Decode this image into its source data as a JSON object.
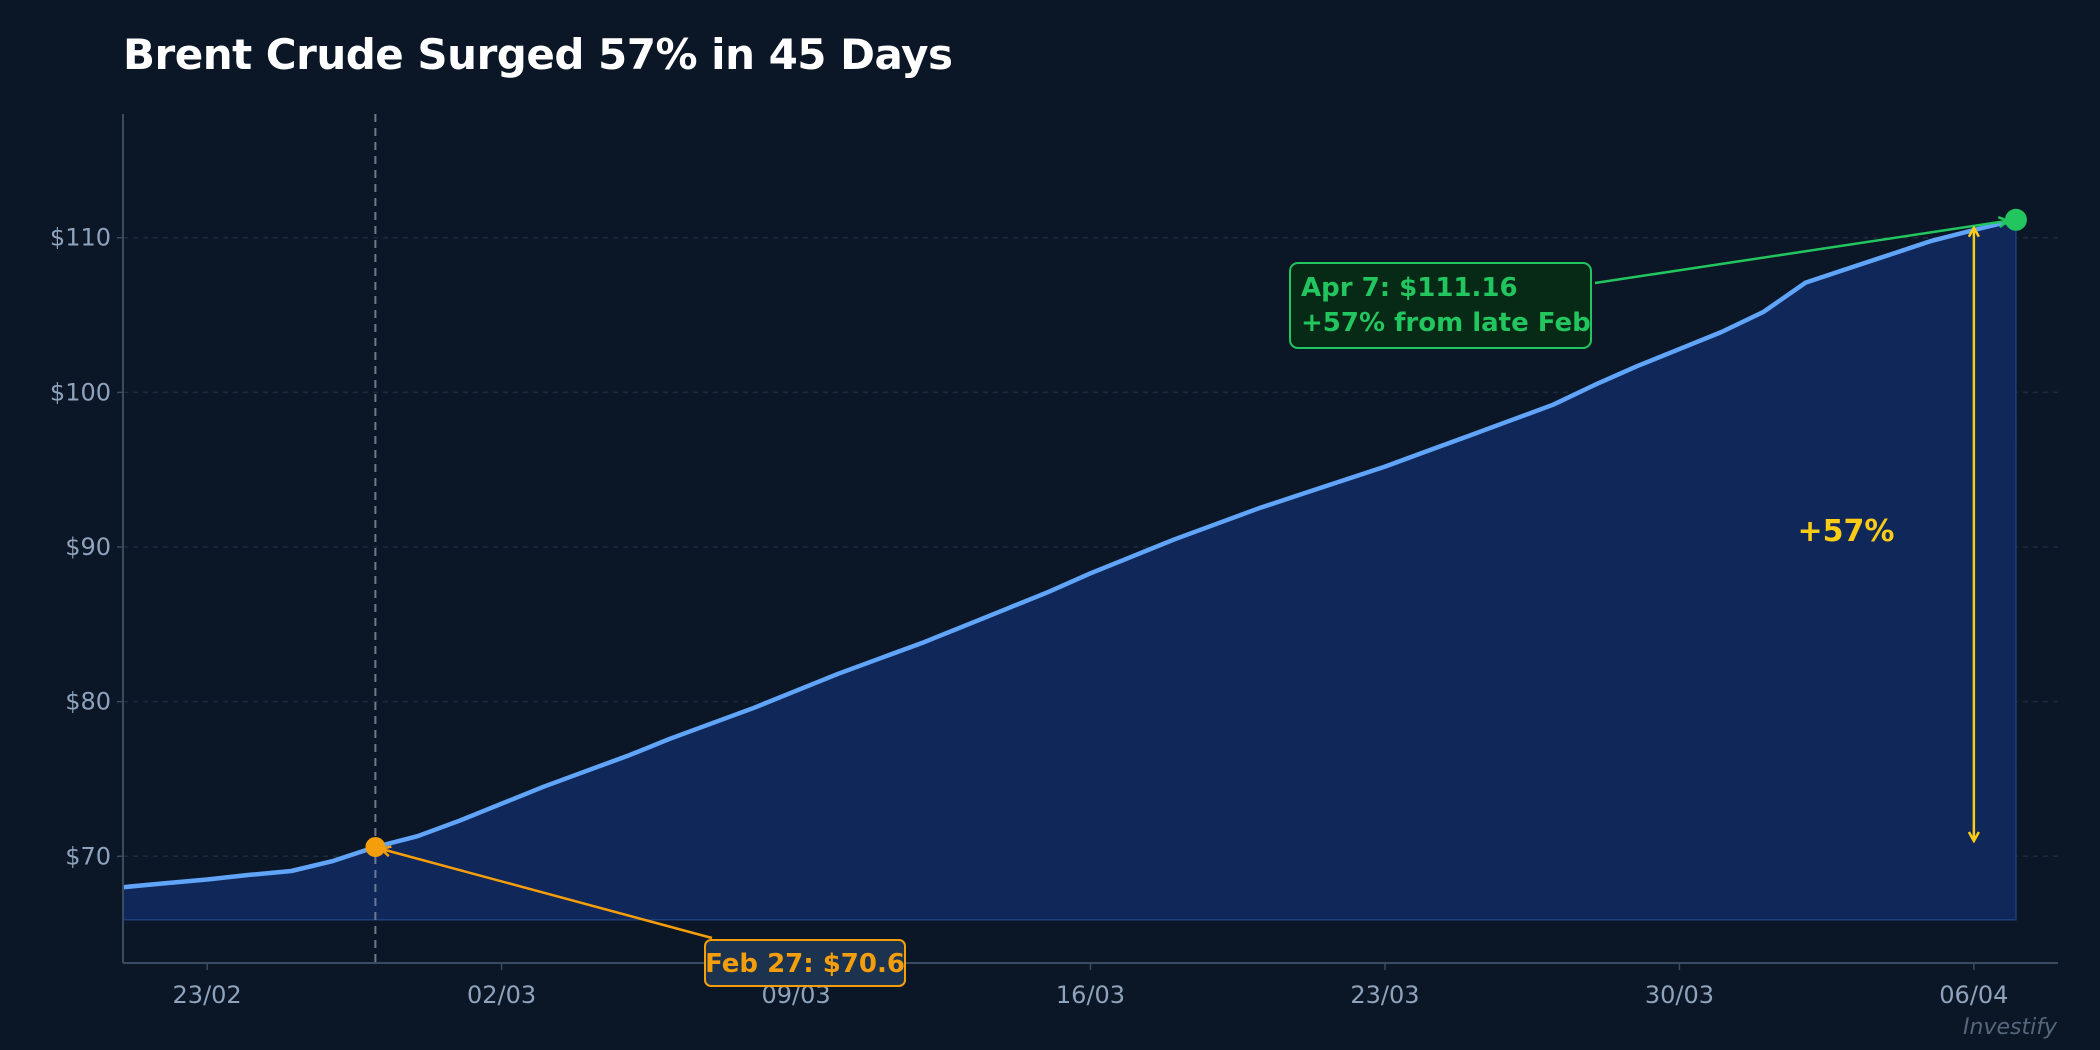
{
  "chart_data": {
    "type": "area",
    "title": "Brent Crude Surged 57% in 45 Days",
    "xlabel": "",
    "ylabel": "",
    "x": [
      "21/02",
      "22/02",
      "23/02",
      "24/02",
      "25/02",
      "26/02",
      "27/02",
      "28/02",
      "01/03",
      "02/03",
      "03/03",
      "04/03",
      "05/03",
      "06/03",
      "07/03",
      "08/03",
      "09/03",
      "10/03",
      "11/03",
      "12/03",
      "13/03",
      "14/03",
      "15/03",
      "16/03",
      "17/03",
      "18/03",
      "19/03",
      "20/03",
      "21/03",
      "22/03",
      "23/03",
      "24/03",
      "25/03",
      "26/03",
      "27/03",
      "28/03",
      "29/03",
      "30/03",
      "31/03",
      "01/04",
      "02/04",
      "03/04",
      "04/04",
      "05/04",
      "06/04",
      "07/04"
    ],
    "values": [
      68.0,
      68.26,
      68.5,
      68.8,
      69.05,
      69.7,
      70.6,
      71.3,
      72.3,
      73.4,
      74.5,
      75.5,
      76.5,
      77.6,
      78.6,
      79.6,
      80.7,
      81.8,
      82.8,
      83.8,
      84.9,
      86.0,
      87.1,
      88.3,
      89.4,
      90.5,
      91.5,
      92.5,
      93.4,
      94.3,
      95.2,
      96.2,
      97.2,
      98.2,
      99.2,
      100.5,
      101.7,
      102.8,
      103.9,
      105.2,
      107.1,
      108.0,
      108.9,
      109.8,
      110.5,
      111.16
    ],
    "xlim": [
      "21/02",
      "08/04"
    ],
    "ylim": [
      63.1,
      118
    ],
    "area_baseline": 65.9,
    "x_ticks": [
      "23/02",
      "02/03",
      "09/03",
      "16/03",
      "23/03",
      "30/03",
      "06/04"
    ],
    "y_ticks": [
      70,
      80,
      90,
      100,
      110
    ],
    "y_tick_labels": [
      "$70",
      "$80",
      "$90",
      "$100",
      "$110"
    ],
    "grid": "horizontal dashed",
    "annotations": {
      "start": {
        "x": "27/02",
        "y": 70.6,
        "label": "Feb 27: $70.6",
        "color": "#f59e0b"
      },
      "end": {
        "x": "07/04",
        "y": 111.16,
        "line1": "Apr 7: $111.16",
        "line2": "+57% from late Feb",
        "color": "#22c55e"
      },
      "change": {
        "label": "+57%",
        "color": "#facc15"
      }
    },
    "colors": {
      "background": "#0b1626",
      "line": "#60a5fa",
      "fill": "#10275a",
      "grid": "#1e2c40",
      "axis": "#3a4a60",
      "tick_text": "#8fa3bc"
    }
  },
  "watermark": "Investify"
}
